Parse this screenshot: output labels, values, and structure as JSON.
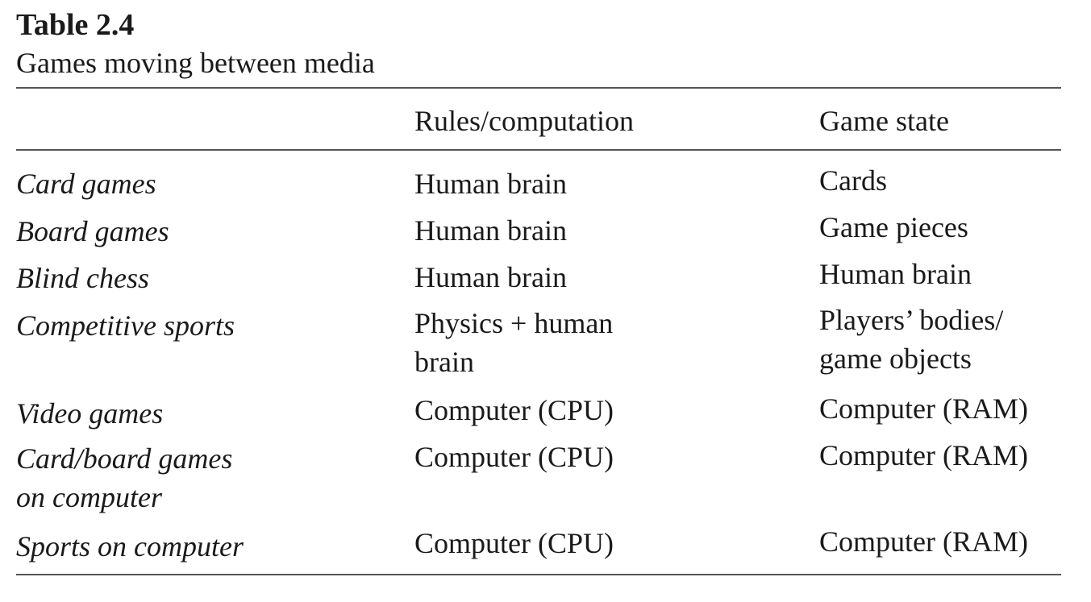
{
  "table": {
    "label": "Table 2.4",
    "caption": "Games moving between media",
    "columns": [
      "",
      "Rules/computation",
      "Game state"
    ],
    "rows": [
      {
        "game": "Card games",
        "rules": "Human brain",
        "state": "Cards"
      },
      {
        "game": "Board games",
        "rules": "Human brain",
        "state": "Game pieces"
      },
      {
        "game": "Blind chess",
        "rules": "Human brain",
        "state": "Human brain"
      },
      {
        "game": "Competitive sports",
        "rules": "Physics + human\nbrain",
        "state": "Players’ bodies/\ngame objects"
      },
      {
        "game": "Video games",
        "rules": "Computer (CPU)",
        "state": "Computer (RAM)"
      },
      {
        "game": "Card/board games\non computer",
        "rules": "Computer (CPU)",
        "state": "Computer (RAM)"
      },
      {
        "game": "Sports on computer",
        "rules": "Computer (CPU)",
        "state": "Computer (RAM)"
      }
    ]
  }
}
